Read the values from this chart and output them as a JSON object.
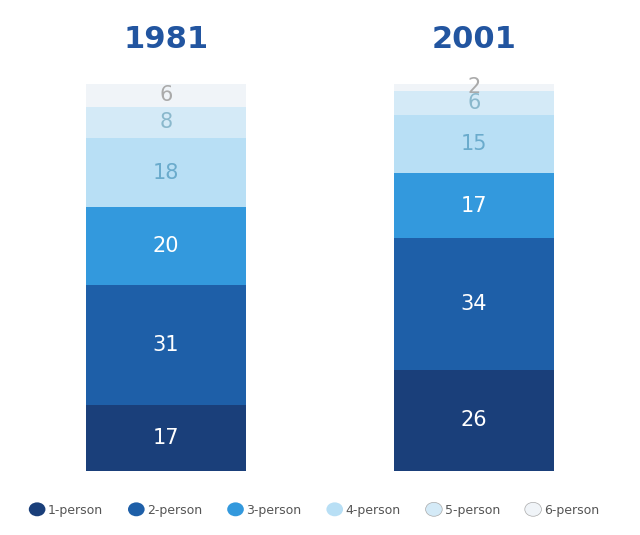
{
  "years": [
    "1981",
    "2001"
  ],
  "categories": [
    "1-person",
    "2-person",
    "3-person",
    "4-person",
    "5-person",
    "6-person"
  ],
  "values_1981": [
    17,
    31,
    20,
    18,
    8,
    6
  ],
  "values_2001": [
    26,
    34,
    17,
    15,
    6,
    2
  ],
  "colors": [
    "#1a3f7a",
    "#1e5fa8",
    "#3399dd",
    "#b8dff5",
    "#d4eaf7",
    "#f0f4f8"
  ],
  "label_colors": [
    "#ffffff",
    "#ffffff",
    "#ffffff",
    "#6aabcc",
    "#8ab8cc",
    "#aaaaaa"
  ],
  "title_1981": "1981",
  "title_2001": "2001",
  "title_color": "#2255a0",
  "background_color": "#ffffff",
  "title_fontsize": 22,
  "label_fontsize": 15,
  "legend_fontsize": 9
}
